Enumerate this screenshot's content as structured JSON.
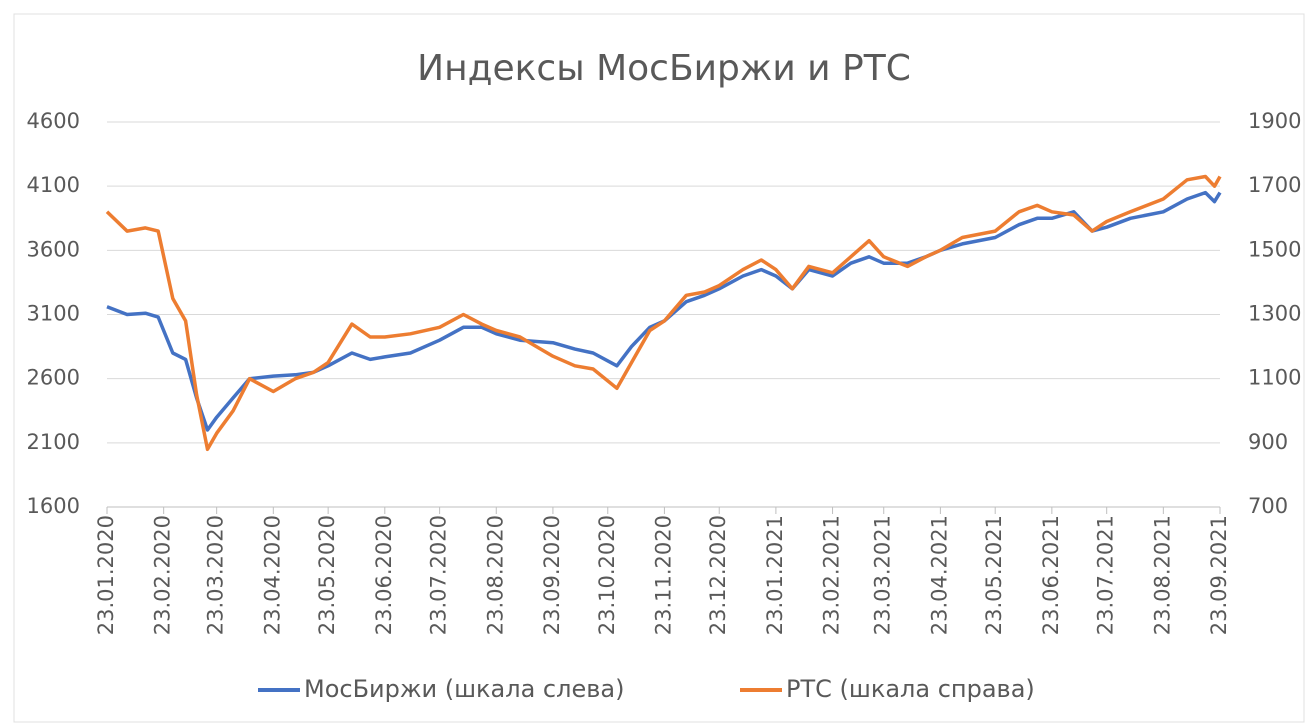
{
  "chart_data": {
    "type": "line",
    "title": "Индексы МосБиржи и РТС",
    "x": [
      "23.01.2020",
      "03.02.2020",
      "13.02.2020",
      "20.02.2020",
      "28.02.2020",
      "06.03.2020",
      "12.03.2020",
      "18.03.2020",
      "23.03.2020",
      "01.04.2020",
      "10.04.2020",
      "23.04.2020",
      "05.05.2020",
      "15.05.2020",
      "23.05.2020",
      "05.06.2020",
      "15.06.2020",
      "23.06.2020",
      "07.07.2020",
      "23.07.2020",
      "05.08.2020",
      "15.08.2020",
      "23.08.2020",
      "05.09.2020",
      "23.09.2020",
      "05.10.2020",
      "15.10.2020",
      "28.10.2020",
      "05.11.2020",
      "15.11.2020",
      "23.11.2020",
      "05.12.2020",
      "15.12.2020",
      "23.12.2020",
      "05.01.2021",
      "15.01.2021",
      "23.01.2021",
      "01.02.2021",
      "10.02.2021",
      "23.02.2021",
      "05.03.2021",
      "15.03.2021",
      "23.03.2021",
      "05.04.2021",
      "15.04.2021",
      "23.04.2021",
      "05.05.2021",
      "23.05.2021",
      "05.06.2021",
      "15.06.2021",
      "23.06.2021",
      "05.07.2021",
      "15.07.2021",
      "23.07.2021",
      "05.08.2021",
      "23.08.2021",
      "05.09.2021",
      "15.09.2021",
      "20.09.2021",
      "23.09.2021"
    ],
    "series": [
      {
        "name": "МосБиржи (шкала слева)",
        "color": "#4472c4",
        "axis": "y",
        "values": [
          3160,
          3100,
          3110,
          3080,
          2800,
          2750,
          2450,
          2200,
          2300,
          2450,
          2600,
          2620,
          2630,
          2650,
          2700,
          2800,
          2750,
          2770,
          2800,
          2900,
          3000,
          3000,
          2950,
          2900,
          2880,
          2830,
          2800,
          2700,
          2850,
          3000,
          3050,
          3200,
          3250,
          3300,
          3400,
          3450,
          3400,
          3300,
          3450,
          3400,
          3500,
          3550,
          3500,
          3500,
          3550,
          3600,
          3650,
          3700,
          3800,
          3850,
          3850,
          3900,
          3750,
          3780,
          3850,
          3900,
          4000,
          4050,
          3980,
          4050
        ]
      },
      {
        "name": "РТС (шкала справа)",
        "color": "#ed7d31",
        "axis": "y2",
        "values": [
          1620,
          1560,
          1570,
          1560,
          1350,
          1280,
          1050,
          880,
          930,
          1000,
          1100,
          1060,
          1100,
          1120,
          1150,
          1270,
          1230,
          1230,
          1240,
          1260,
          1300,
          1270,
          1250,
          1230,
          1170,
          1140,
          1130,
          1070,
          1150,
          1250,
          1280,
          1360,
          1370,
          1390,
          1440,
          1470,
          1440,
          1380,
          1450,
          1430,
          1480,
          1530,
          1480,
          1450,
          1480,
          1500,
          1540,
          1560,
          1620,
          1640,
          1620,
          1610,
          1560,
          1590,
          1620,
          1660,
          1720,
          1730,
          1700,
          1730
        ]
      }
    ],
    "xlim": [
      "23.01.2020",
      "23.09.2021"
    ],
    "xticks": [
      "23.01.2020",
      "23.02.2020",
      "23.03.2020",
      "23.04.2020",
      "23.05.2020",
      "23.06.2020",
      "23.07.2020",
      "23.08.2020",
      "23.09.2020",
      "23.10.2020",
      "23.11.2020",
      "23.12.2020",
      "23.01.2021",
      "23.02.2021",
      "23.03.2021",
      "23.04.2021",
      "23.05.2021",
      "23.06.2021",
      "23.07.2021",
      "23.08.2021",
      "23.09.2021"
    ],
    "ylim": [
      1600,
      4600
    ],
    "yticks": [
      1600,
      2100,
      2600,
      3100,
      3600,
      4100,
      4600
    ],
    "y2lim": [
      700,
      1900
    ],
    "y2ticks": [
      700,
      900,
      1100,
      1300,
      1500,
      1700,
      1900
    ],
    "grid": true,
    "legend": "bottom"
  }
}
